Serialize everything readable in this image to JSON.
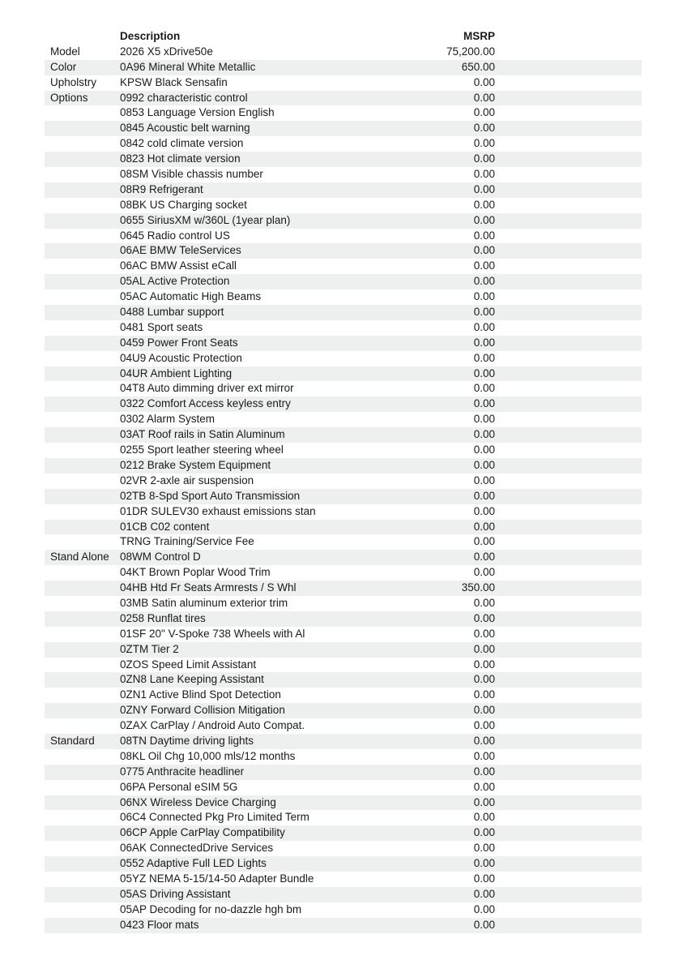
{
  "page": {
    "table": {
      "header": {
        "category": "",
        "description": "Description",
        "msrp": "MSRP"
      },
      "rows": [
        {
          "category": "Model",
          "description": "2026 X5 xDrive50e",
          "msrp": "75,200.00"
        },
        {
          "category": "Color",
          "description": "0A96 Mineral White Metallic",
          "msrp": "650.00"
        },
        {
          "category": "Upholstry",
          "description": "KPSW Black Sensafin",
          "msrp": "0.00"
        },
        {
          "category": "Options",
          "description": "0992 characteristic control",
          "msrp": "0.00"
        },
        {
          "category": "",
          "description": "0853 Language Version English",
          "msrp": "0.00"
        },
        {
          "category": "",
          "description": "0845 Acoustic belt warning",
          "msrp": "0.00"
        },
        {
          "category": "",
          "description": "0842 cold climate version",
          "msrp": "0.00"
        },
        {
          "category": "",
          "description": "0823 Hot climate version",
          "msrp": "0.00"
        },
        {
          "category": "",
          "description": "08SM Visible chassis number",
          "msrp": "0.00"
        },
        {
          "category": "",
          "description": "08R9 Refrigerant",
          "msrp": "0.00"
        },
        {
          "category": "",
          "description": "08BK US Charging socket",
          "msrp": "0.00"
        },
        {
          "category": "",
          "description": "0655 SiriusXM w/360L (1year plan)",
          "msrp": "0.00"
        },
        {
          "category": "",
          "description": "0645 Radio control US",
          "msrp": "0.00"
        },
        {
          "category": "",
          "description": "06AE BMW TeleServices",
          "msrp": "0.00"
        },
        {
          "category": "",
          "description": "06AC BMW Assist eCall",
          "msrp": "0.00"
        },
        {
          "category": "",
          "description": "05AL Active Protection",
          "msrp": "0.00"
        },
        {
          "category": "",
          "description": "05AC Automatic High Beams",
          "msrp": "0.00"
        },
        {
          "category": "",
          "description": "0488 Lumbar support",
          "msrp": "0.00"
        },
        {
          "category": "",
          "description": "0481 Sport seats",
          "msrp": "0.00"
        },
        {
          "category": "",
          "description": "0459 Power Front Seats",
          "msrp": "0.00"
        },
        {
          "category": "",
          "description": "04U9 Acoustic Protection",
          "msrp": "0.00"
        },
        {
          "category": "",
          "description": "04UR Ambient Lighting",
          "msrp": "0.00"
        },
        {
          "category": "",
          "description": "04T8 Auto dimming driver ext mirror",
          "msrp": "0.00"
        },
        {
          "category": "",
          "description": "0322 Comfort Access keyless entry",
          "msrp": "0.00"
        },
        {
          "category": "",
          "description": "0302 Alarm System",
          "msrp": "0.00"
        },
        {
          "category": "",
          "description": "03AT Roof rails in Satin Aluminum",
          "msrp": "0.00"
        },
        {
          "category": "",
          "description": "0255 Sport leather steering wheel",
          "msrp": "0.00"
        },
        {
          "category": "",
          "description": "0212 Brake System Equipment",
          "msrp": "0.00"
        },
        {
          "category": "",
          "description": "02VR 2-axle air suspension",
          "msrp": "0.00"
        },
        {
          "category": "",
          "description": "02TB 8-Spd Sport Auto Transmission",
          "msrp": "0.00"
        },
        {
          "category": "",
          "description": "01DR SULEV30 exhaust emissions stan",
          "msrp": "0.00"
        },
        {
          "category": "",
          "description": "01CB C02 content",
          "msrp": "0.00"
        },
        {
          "category": "",
          "description": "TRNG Training/Service Fee",
          "msrp": "0.00"
        },
        {
          "category": "Stand Alone",
          "description": "08WM Control D",
          "msrp": "0.00"
        },
        {
          "category": "",
          "description": "04KT Brown Poplar Wood Trim",
          "msrp": "0.00"
        },
        {
          "category": "",
          "description": "04HB Htd Fr Seats Armrests / S Whl",
          "msrp": "350.00"
        },
        {
          "category": "",
          "description": "03MB Satin aluminum exterior trim",
          "msrp": "0.00"
        },
        {
          "category": "",
          "description": "0258 Runflat tires",
          "msrp": "0.00"
        },
        {
          "category": "",
          "description": "01SF 20\" V-Spoke 738 Wheels with Al",
          "msrp": "0.00"
        },
        {
          "category": "",
          "description": "0ZTM Tier 2",
          "msrp": "0.00"
        },
        {
          "category": "",
          "description": "0ZOS Speed Limit Assistant",
          "msrp": "0.00"
        },
        {
          "category": "",
          "description": "0ZN8 Lane Keeping Assistant",
          "msrp": "0.00"
        },
        {
          "category": "",
          "description": "0ZN1 Active Blind Spot Detection",
          "msrp": "0.00"
        },
        {
          "category": "",
          "description": "0ZNY Forward Collision Mitigation",
          "msrp": "0.00"
        },
        {
          "category": "",
          "description": "0ZAX CarPlay / Android Auto Compat.",
          "msrp": "0.00"
        },
        {
          "category": "Standard",
          "description": "08TN Daytime driving lights",
          "msrp": "0.00"
        },
        {
          "category": "",
          "description": "08KL Oil Chg 10,000 mls/12 months",
          "msrp": "0.00"
        },
        {
          "category": "",
          "description": "0775 Anthracite headliner",
          "msrp": "0.00"
        },
        {
          "category": "",
          "description": "06PA Personal eSIM 5G",
          "msrp": "0.00"
        },
        {
          "category": "",
          "description": "06NX Wireless Device Charging",
          "msrp": "0.00"
        },
        {
          "category": "",
          "description": "06C4 Connected Pkg Pro Limited Term",
          "msrp": "0.00"
        },
        {
          "category": "",
          "description": "06CP Apple CarPlay Compatibility",
          "msrp": "0.00"
        },
        {
          "category": "",
          "description": "06AK ConnectedDrive Services",
          "msrp": "0.00"
        },
        {
          "category": "",
          "description": "0552 Adaptive Full LED Lights",
          "msrp": "0.00"
        },
        {
          "category": "",
          "description": "05YZ NEMA 5-15/14-50 Adapter Bundle",
          "msrp": "0.00"
        },
        {
          "category": "",
          "description": "05AS Driving Assistant",
          "msrp": "0.00"
        },
        {
          "category": "",
          "description": "05AP Decoding for no-dazzle hgh bm",
          "msrp": "0.00"
        },
        {
          "category": "",
          "description": "0423 Floor mats",
          "msrp": "0.00"
        }
      ],
      "colors": {
        "row_shade": "#edf0ee",
        "text": "#1a1a1a",
        "page_background": "#ffffff"
      }
    }
  }
}
